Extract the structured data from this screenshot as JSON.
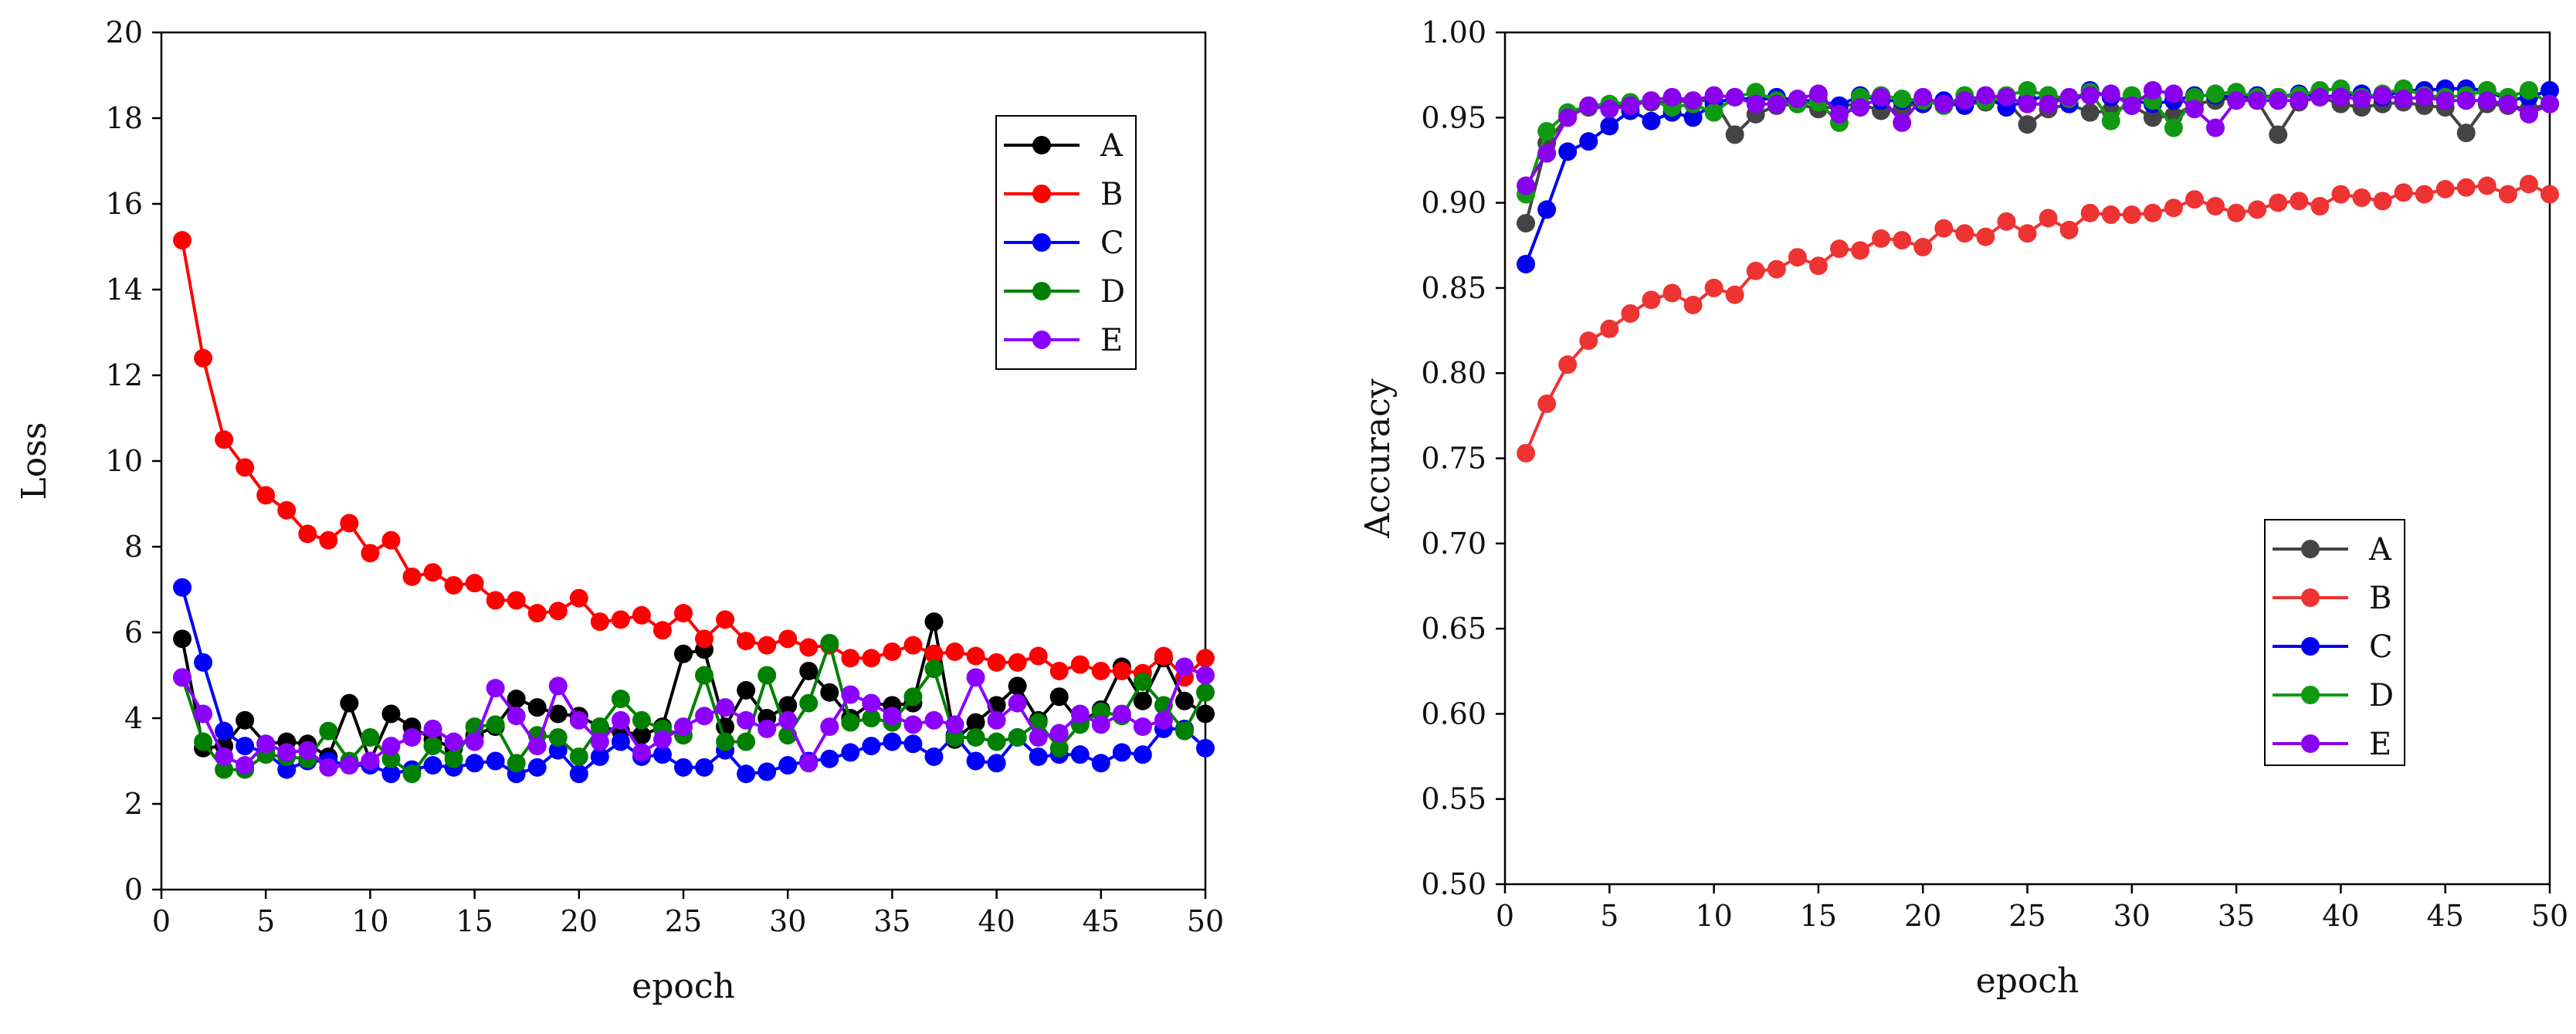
{
  "chart_data": [
    {
      "type": "line",
      "xlabel": "epoch",
      "ylabel": "Loss",
      "xlim": [
        0,
        50
      ],
      "ylim": [
        0,
        20
      ],
      "xticks": [
        0,
        5,
        10,
        15,
        20,
        25,
        30,
        35,
        40,
        45,
        50
      ],
      "yticks": [
        0,
        2,
        4,
        6,
        8,
        10,
        12,
        14,
        16,
        18,
        20
      ],
      "legend_position": "top-right",
      "x": [
        1,
        2,
        3,
        4,
        5,
        6,
        7,
        8,
        9,
        10,
        11,
        12,
        13,
        14,
        15,
        16,
        17,
        18,
        19,
        20,
        21,
        22,
        23,
        24,
        25,
        26,
        27,
        28,
        29,
        30,
        31,
        32,
        33,
        34,
        35,
        36,
        37,
        38,
        39,
        40,
        41,
        42,
        43,
        44,
        45,
        46,
        47,
        48,
        49,
        50
      ],
      "series": [
        {
          "name": "A",
          "color": "#000000",
          "values": [
            5.85,
            3.3,
            3.35,
            3.95,
            3.4,
            3.45,
            3.4,
            3.1,
            4.35,
            3.0,
            4.1,
            3.8,
            3.5,
            3.3,
            3.6,
            3.8,
            4.45,
            4.25,
            4.1,
            4.05,
            3.8,
            3.7,
            3.6,
            3.8,
            5.5,
            5.6,
            3.8,
            4.65,
            4.0,
            4.3,
            5.1,
            4.6,
            4.0,
            4.35,
            4.3,
            4.35,
            6.25,
            3.5,
            3.9,
            4.3,
            4.75,
            3.95,
            4.5,
            3.9,
            4.2,
            5.2,
            4.4,
            5.4,
            4.4,
            4.1
          ]
        },
        {
          "name": "B",
          "color": "#ff0000",
          "values": [
            15.15,
            12.4,
            10.5,
            9.85,
            9.2,
            8.85,
            8.3,
            8.15,
            8.55,
            7.85,
            8.15,
            7.3,
            7.4,
            7.1,
            7.15,
            6.75,
            6.75,
            6.45,
            6.5,
            6.8,
            6.25,
            6.3,
            6.4,
            6.05,
            6.45,
            5.85,
            6.3,
            5.8,
            5.7,
            5.85,
            5.65,
            5.7,
            5.4,
            5.4,
            5.55,
            5.7,
            5.5,
            5.55,
            5.45,
            5.3,
            5.3,
            5.45,
            5.1,
            5.25,
            5.1,
            5.1,
            5.05,
            5.45,
            4.95,
            5.4
          ]
        },
        {
          "name": "C",
          "color": "#0000ff",
          "values": [
            7.05,
            5.3,
            3.7,
            3.35,
            3.2,
            2.8,
            3.0,
            3.0,
            2.9,
            2.9,
            2.7,
            2.8,
            2.9,
            2.85,
            2.95,
            3.0,
            2.7,
            2.85,
            3.25,
            2.7,
            3.1,
            3.45,
            3.1,
            3.15,
            2.85,
            2.85,
            3.25,
            2.7,
            2.75,
            2.9,
            3.0,
            3.05,
            3.2,
            3.35,
            3.45,
            3.4,
            3.1,
            3.6,
            3.0,
            2.95,
            3.55,
            3.1,
            3.15,
            3.15,
            2.95,
            3.2,
            3.15,
            3.75,
            3.75,
            3.3
          ]
        },
        {
          "name": "D",
          "color": "#008000",
          "values": [
            4.95,
            3.45,
            2.8,
            2.8,
            3.15,
            3.1,
            3.05,
            3.7,
            3.0,
            3.55,
            3.05,
            2.7,
            3.35,
            3.05,
            3.8,
            3.85,
            2.95,
            3.6,
            3.55,
            3.1,
            3.8,
            4.45,
            3.95,
            3.75,
            3.6,
            5.0,
            3.45,
            3.45,
            5.0,
            3.6,
            4.35,
            5.75,
            3.9,
            4.0,
            3.9,
            4.5,
            5.15,
            3.55,
            3.55,
            3.45,
            3.55,
            3.9,
            3.3,
            3.85,
            4.15,
            4.05,
            4.85,
            4.3,
            3.7,
            4.6
          ]
        },
        {
          "name": "E",
          "color": "#8b00ff",
          "values": [
            4.95,
            4.1,
            3.1,
            2.9,
            3.4,
            3.2,
            3.25,
            2.85,
            2.9,
            3.0,
            3.35,
            3.55,
            3.75,
            3.45,
            3.45,
            4.7,
            4.05,
            3.35,
            4.75,
            3.95,
            3.45,
            3.95,
            3.2,
            3.5,
            3.8,
            4.05,
            4.25,
            3.95,
            3.75,
            3.95,
            2.95,
            3.8,
            4.55,
            4.35,
            4.05,
            3.85,
            3.95,
            3.85,
            4.95,
            3.95,
            4.35,
            3.55,
            3.65,
            4.1,
            3.85,
            4.1,
            3.8,
            3.95,
            5.2,
            5.0
          ]
        }
      ]
    },
    {
      "type": "line",
      "xlabel": "epoch",
      "ylabel": "Accuracy",
      "xlim": [
        0,
        50
      ],
      "ylim": [
        0.5,
        1.0
      ],
      "xticks": [
        0,
        5,
        10,
        15,
        20,
        25,
        30,
        35,
        40,
        45,
        50
      ],
      "yticks": [
        "0.50",
        "0.55",
        "0.60",
        "0.65",
        "0.70",
        "0.75",
        "0.80",
        "0.85",
        "0.90",
        "0.95",
        "1.00"
      ],
      "legend_position": "bottom-right",
      "x": [
        1,
        2,
        3,
        4,
        5,
        6,
        7,
        8,
        9,
        10,
        11,
        12,
        13,
        14,
        15,
        16,
        17,
        18,
        19,
        20,
        21,
        22,
        23,
        24,
        25,
        26,
        27,
        28,
        29,
        30,
        31,
        32,
        33,
        34,
        35,
        36,
        37,
        38,
        39,
        40,
        41,
        42,
        43,
        44,
        45,
        46,
        47,
        48,
        49,
        50
      ],
      "series": [
        {
          "name": "A",
          "color": "#444444",
          "values": [
            0.888,
            0.935,
            0.951,
            0.956,
            0.957,
            0.958,
            0.959,
            0.959,
            0.96,
            0.96,
            0.94,
            0.952,
            0.957,
            0.958,
            0.955,
            0.957,
            0.958,
            0.954,
            0.955,
            0.96,
            0.957,
            0.958,
            0.959,
            0.96,
            0.946,
            0.955,
            0.958,
            0.953,
            0.954,
            0.957,
            0.95,
            0.951,
            0.958,
            0.96,
            0.962,
            0.96,
            0.94,
            0.959,
            0.962,
            0.958,
            0.956,
            0.958,
            0.959,
            0.957,
            0.956,
            0.941,
            0.958,
            0.957,
            0.955,
            0.958
          ]
        },
        {
          "name": "B",
          "color": "#ee3333",
          "values": [
            0.753,
            0.782,
            0.805,
            0.819,
            0.826,
            0.835,
            0.843,
            0.847,
            0.84,
            0.85,
            0.846,
            0.86,
            0.861,
            0.868,
            0.863,
            0.873,
            0.872,
            0.879,
            0.878,
            0.874,
            0.885,
            0.882,
            0.88,
            0.889,
            0.882,
            0.891,
            0.884,
            0.894,
            0.893,
            0.893,
            0.894,
            0.897,
            0.902,
            0.898,
            0.894,
            0.896,
            0.9,
            0.901,
            0.898,
            0.905,
            0.903,
            0.901,
            0.906,
            0.905,
            0.908,
            0.909,
            0.91,
            0.905,
            0.911,
            0.905
          ]
        },
        {
          "name": "C",
          "color": "#0000ee",
          "values": [
            0.864,
            0.896,
            0.93,
            0.936,
            0.945,
            0.954,
            0.948,
            0.953,
            0.95,
            0.958,
            0.962,
            0.96,
            0.962,
            0.96,
            0.96,
            0.957,
            0.963,
            0.96,
            0.96,
            0.958,
            0.96,
            0.957,
            0.962,
            0.956,
            0.96,
            0.963,
            0.958,
            0.966,
            0.962,
            0.96,
            0.958,
            0.96,
            0.963,
            0.963,
            0.962,
            0.963,
            0.962,
            0.964,
            0.962,
            0.963,
            0.964,
            0.962,
            0.966,
            0.966,
            0.967,
            0.967,
            0.966,
            0.96,
            0.962,
            0.966
          ]
        },
        {
          "name": "D",
          "color": "#119911",
          "values": [
            0.905,
            0.942,
            0.953,
            0.957,
            0.958,
            0.959,
            0.96,
            0.956,
            0.958,
            0.953,
            0.962,
            0.965,
            0.96,
            0.958,
            0.959,
            0.947,
            0.962,
            0.963,
            0.961,
            0.96,
            0.957,
            0.963,
            0.96,
            0.963,
            0.966,
            0.963,
            0.961,
            0.965,
            0.948,
            0.963,
            0.96,
            0.944,
            0.962,
            0.964,
            0.965,
            0.962,
            0.962,
            0.963,
            0.966,
            0.967,
            0.962,
            0.964,
            0.967,
            0.963,
            0.962,
            0.963,
            0.966,
            0.962,
            0.966,
            0.958
          ]
        },
        {
          "name": "E",
          "color": "#8800ee",
          "values": [
            0.91,
            0.929,
            0.95,
            0.957,
            0.955,
            0.957,
            0.96,
            0.962,
            0.96,
            0.963,
            0.962,
            0.958,
            0.958,
            0.961,
            0.964,
            0.952,
            0.956,
            0.962,
            0.947,
            0.962,
            0.958,
            0.96,
            0.963,
            0.962,
            0.958,
            0.958,
            0.962,
            0.963,
            0.964,
            0.957,
            0.966,
            0.964,
            0.955,
            0.944,
            0.96,
            0.96,
            0.96,
            0.96,
            0.962,
            0.962,
            0.961,
            0.963,
            0.961,
            0.962,
            0.96,
            0.96,
            0.96,
            0.958,
            0.952,
            0.958
          ]
        }
      ]
    }
  ]
}
